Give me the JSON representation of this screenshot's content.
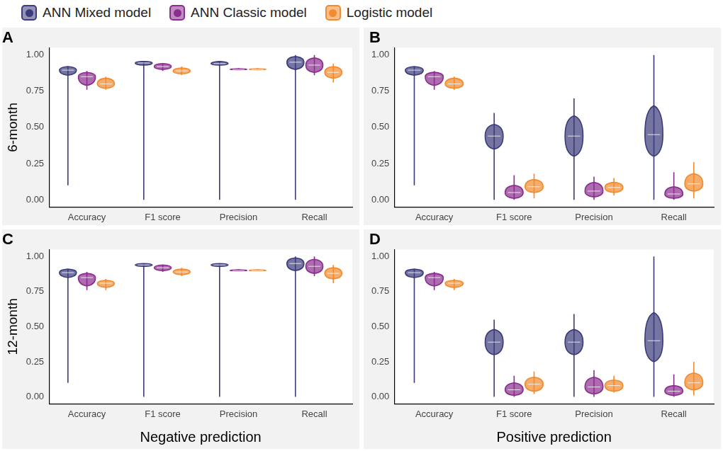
{
  "chart_data": [
    {
      "type": "violin",
      "title": "A",
      "y_label": "6-month",
      "legend": "top",
      "grid": false,
      "categories": [
        "Accuracy",
        "F1 score",
        "Precision",
        "Recall"
      ],
      "ylim": [
        -0.05,
        1.05
      ],
      "yticks": [
        {
          "value": 0,
          "label": "0.00"
        },
        {
          "value": 0.25,
          "label": "0.25"
        },
        {
          "value": 0.5,
          "label": "0.50"
        },
        {
          "value": 0.75,
          "label": "0.75"
        },
        {
          "value": 1,
          "label": "1.00"
        }
      ],
      "series": [
        {
          "name": "ANN Mixed model",
          "color": "#3b3a7a",
          "values": [
            {
              "min": 0.1,
              "body": [
                0.86,
                0.92
              ],
              "median": 0.895,
              "max": 0.92
            },
            {
              "min": 0.0,
              "body": [
                0.93,
                0.955
              ],
              "median": 0.945,
              "max": 0.955
            },
            {
              "min": 0.0,
              "body": [
                0.93,
                0.955
              ],
              "median": 0.94,
              "max": 0.955
            },
            {
              "min": 0.0,
              "body": [
                0.9,
                0.99
              ],
              "median": 0.95,
              "max": 1.0
            }
          ]
        },
        {
          "name": "ANN Classic model",
          "color": "#8a2d8f",
          "values": [
            {
              "min": 0.76,
              "body": [
                0.79,
                0.88
              ],
              "median": 0.85,
              "max": 0.89
            },
            {
              "min": 0.89,
              "body": [
                0.9,
                0.94
              ],
              "median": 0.92,
              "max": 0.94
            },
            {
              "min": 0.895,
              "body": [
                0.898,
                0.905
              ],
              "median": 0.9,
              "max": 0.91
            },
            {
              "min": 0.86,
              "body": [
                0.88,
                0.98
              ],
              "median": 0.93,
              "max": 1.0
            }
          ]
        },
        {
          "name": "Logistic model",
          "color": "#f28a2e",
          "values": [
            {
              "min": 0.76,
              "body": [
                0.77,
                0.84
              ],
              "median": 0.8,
              "max": 0.85
            },
            {
              "min": 0.86,
              "body": [
                0.87,
                0.91
              ],
              "median": 0.89,
              "max": 0.92
            },
            {
              "min": 0.895,
              "body": [
                0.898,
                0.905
              ],
              "median": 0.9,
              "max": 0.91
            },
            {
              "min": 0.81,
              "body": [
                0.84,
                0.92
              ],
              "median": 0.88,
              "max": 0.94
            }
          ]
        }
      ]
    },
    {
      "type": "violin",
      "title": "B",
      "grid": false,
      "categories": [
        "Accuracy",
        "F1 score",
        "Precision",
        "Recall"
      ],
      "ylim": [
        -0.05,
        1.05
      ],
      "yticks": [
        {
          "value": 0,
          "label": "0.00"
        },
        {
          "value": 0.25,
          "label": "0.25"
        },
        {
          "value": 0.5,
          "label": "0.50"
        },
        {
          "value": 0.75,
          "label": "0.75"
        },
        {
          "value": 1,
          "label": "1.00"
        }
      ],
      "series": [
        {
          "name": "ANN Mixed model",
          "color": "#3b3a7a",
          "values": [
            {
              "min": 0.1,
              "body": [
                0.86,
                0.92
              ],
              "median": 0.895,
              "max": 0.92
            },
            {
              "min": 0.0,
              "body": [
                0.35,
                0.52
              ],
              "median": 0.44,
              "max": 0.6
            },
            {
              "min": 0.0,
              "body": [
                0.3,
                0.58
              ],
              "median": 0.44,
              "max": 0.7
            },
            {
              "min": 0.0,
              "body": [
                0.3,
                0.65
              ],
              "median": 0.45,
              "max": 1.0
            }
          ]
        },
        {
          "name": "ANN Classic model",
          "color": "#8a2d8f",
          "values": [
            {
              "min": 0.76,
              "body": [
                0.79,
                0.88
              ],
              "median": 0.85,
              "max": 0.89
            },
            {
              "min": 0.0,
              "body": [
                0.01,
                0.1
              ],
              "median": 0.05,
              "max": 0.17
            },
            {
              "min": 0.0,
              "body": [
                0.02,
                0.12
              ],
              "median": 0.06,
              "max": 0.16
            },
            {
              "min": 0.0,
              "body": [
                0.01,
                0.09
              ],
              "median": 0.04,
              "max": 0.19
            }
          ]
        },
        {
          "name": "Logistic model",
          "color": "#f28a2e",
          "values": [
            {
              "min": 0.76,
              "body": [
                0.77,
                0.84
              ],
              "median": 0.8,
              "max": 0.85
            },
            {
              "min": 0.01,
              "body": [
                0.05,
                0.14
              ],
              "median": 0.09,
              "max": 0.18
            },
            {
              "min": 0.03,
              "body": [
                0.05,
                0.12
              ],
              "median": 0.085,
              "max": 0.15
            },
            {
              "min": 0.01,
              "body": [
                0.06,
                0.18
              ],
              "median": 0.11,
              "max": 0.26
            }
          ]
        }
      ]
    },
    {
      "type": "violin",
      "title": "C",
      "y_label": "12-month",
      "x_label": "Negative prediction",
      "grid": false,
      "categories": [
        "Accuracy",
        "F1 score",
        "Precision",
        "Recall"
      ],
      "ylim": [
        -0.05,
        1.05
      ],
      "yticks": [
        {
          "value": 0,
          "label": "0.00"
        },
        {
          "value": 0.25,
          "label": "0.25"
        },
        {
          "value": 0.5,
          "label": "0.50"
        },
        {
          "value": 0.75,
          "label": "0.75"
        },
        {
          "value": 1,
          "label": "1.00"
        }
      ],
      "series": [
        {
          "name": "ANN Mixed model",
          "color": "#3b3a7a",
          "values": [
            {
              "min": 0.1,
              "body": [
                0.85,
                0.91
              ],
              "median": 0.885,
              "max": 0.91
            },
            {
              "min": 0.0,
              "body": [
                0.93,
                0.95
              ],
              "median": 0.94,
              "max": 0.95
            },
            {
              "min": 0.0,
              "body": [
                0.93,
                0.95
              ],
              "median": 0.94,
              "max": 0.95
            },
            {
              "min": 0.0,
              "body": [
                0.9,
                0.99
              ],
              "median": 0.95,
              "max": 1.0
            }
          ]
        },
        {
          "name": "ANN Classic model",
          "color": "#8a2d8f",
          "values": [
            {
              "min": 0.76,
              "body": [
                0.79,
                0.88
              ],
              "median": 0.85,
              "max": 0.89
            },
            {
              "min": 0.89,
              "body": [
                0.9,
                0.94
              ],
              "median": 0.92,
              "max": 0.94
            },
            {
              "min": 0.895,
              "body": [
                0.898,
                0.905
              ],
              "median": 0.9,
              "max": 0.91
            },
            {
              "min": 0.86,
              "body": [
                0.88,
                0.98
              ],
              "median": 0.93,
              "max": 1.0
            }
          ]
        },
        {
          "name": "Logistic model",
          "color": "#f28a2e",
          "values": [
            {
              "min": 0.76,
              "body": [
                0.78,
                0.83
              ],
              "median": 0.81,
              "max": 0.84
            },
            {
              "min": 0.86,
              "body": [
                0.87,
                0.91
              ],
              "median": 0.89,
              "max": 0.92
            },
            {
              "min": 0.895,
              "body": [
                0.898,
                0.905
              ],
              "median": 0.9,
              "max": 0.91
            },
            {
              "min": 0.81,
              "body": [
                0.84,
                0.92
              ],
              "median": 0.88,
              "max": 0.94
            }
          ]
        }
      ]
    },
    {
      "type": "violin",
      "title": "D",
      "x_label": "Positive prediction",
      "grid": false,
      "categories": [
        "Accuracy",
        "F1 score",
        "Precision",
        "Recall"
      ],
      "ylim": [
        -0.05,
        1.05
      ],
      "yticks": [
        {
          "value": 0,
          "label": "0.00"
        },
        {
          "value": 0.25,
          "label": "0.25"
        },
        {
          "value": 0.5,
          "label": "0.50"
        },
        {
          "value": 0.75,
          "label": "0.75"
        },
        {
          "value": 1,
          "label": "1.00"
        }
      ],
      "series": [
        {
          "name": "ANN Mixed model",
          "color": "#3b3a7a",
          "values": [
            {
              "min": 0.1,
              "body": [
                0.85,
                0.91
              ],
              "median": 0.885,
              "max": 0.91
            },
            {
              "min": 0.0,
              "body": [
                0.3,
                0.48
              ],
              "median": 0.39,
              "max": 0.55
            },
            {
              "min": 0.0,
              "body": [
                0.3,
                0.48
              ],
              "median": 0.39,
              "max": 0.59
            },
            {
              "min": 0.0,
              "body": [
                0.25,
                0.6
              ],
              "median": 0.4,
              "max": 1.0
            }
          ]
        },
        {
          "name": "ANN Classic model",
          "color": "#8a2d8f",
          "values": [
            {
              "min": 0.76,
              "body": [
                0.79,
                0.88
              ],
              "median": 0.85,
              "max": 0.89
            },
            {
              "min": 0.0,
              "body": [
                0.01,
                0.1
              ],
              "median": 0.05,
              "max": 0.15
            },
            {
              "min": 0.0,
              "body": [
                0.02,
                0.14
              ],
              "median": 0.07,
              "max": 0.19
            },
            {
              "min": 0.0,
              "body": [
                0.01,
                0.08
              ],
              "median": 0.04,
              "max": 0.16
            }
          ]
        },
        {
          "name": "Logistic model",
          "color": "#f28a2e",
          "values": [
            {
              "min": 0.76,
              "body": [
                0.78,
                0.83
              ],
              "median": 0.81,
              "max": 0.84
            },
            {
              "min": 0.02,
              "body": [
                0.04,
                0.14
              ],
              "median": 0.09,
              "max": 0.18
            },
            {
              "min": 0.03,
              "body": [
                0.04,
                0.12
              ],
              "median": 0.08,
              "max": 0.15
            },
            {
              "min": 0.01,
              "body": [
                0.05,
                0.17
              ],
              "median": 0.1,
              "max": 0.25
            }
          ]
        }
      ]
    }
  ]
}
